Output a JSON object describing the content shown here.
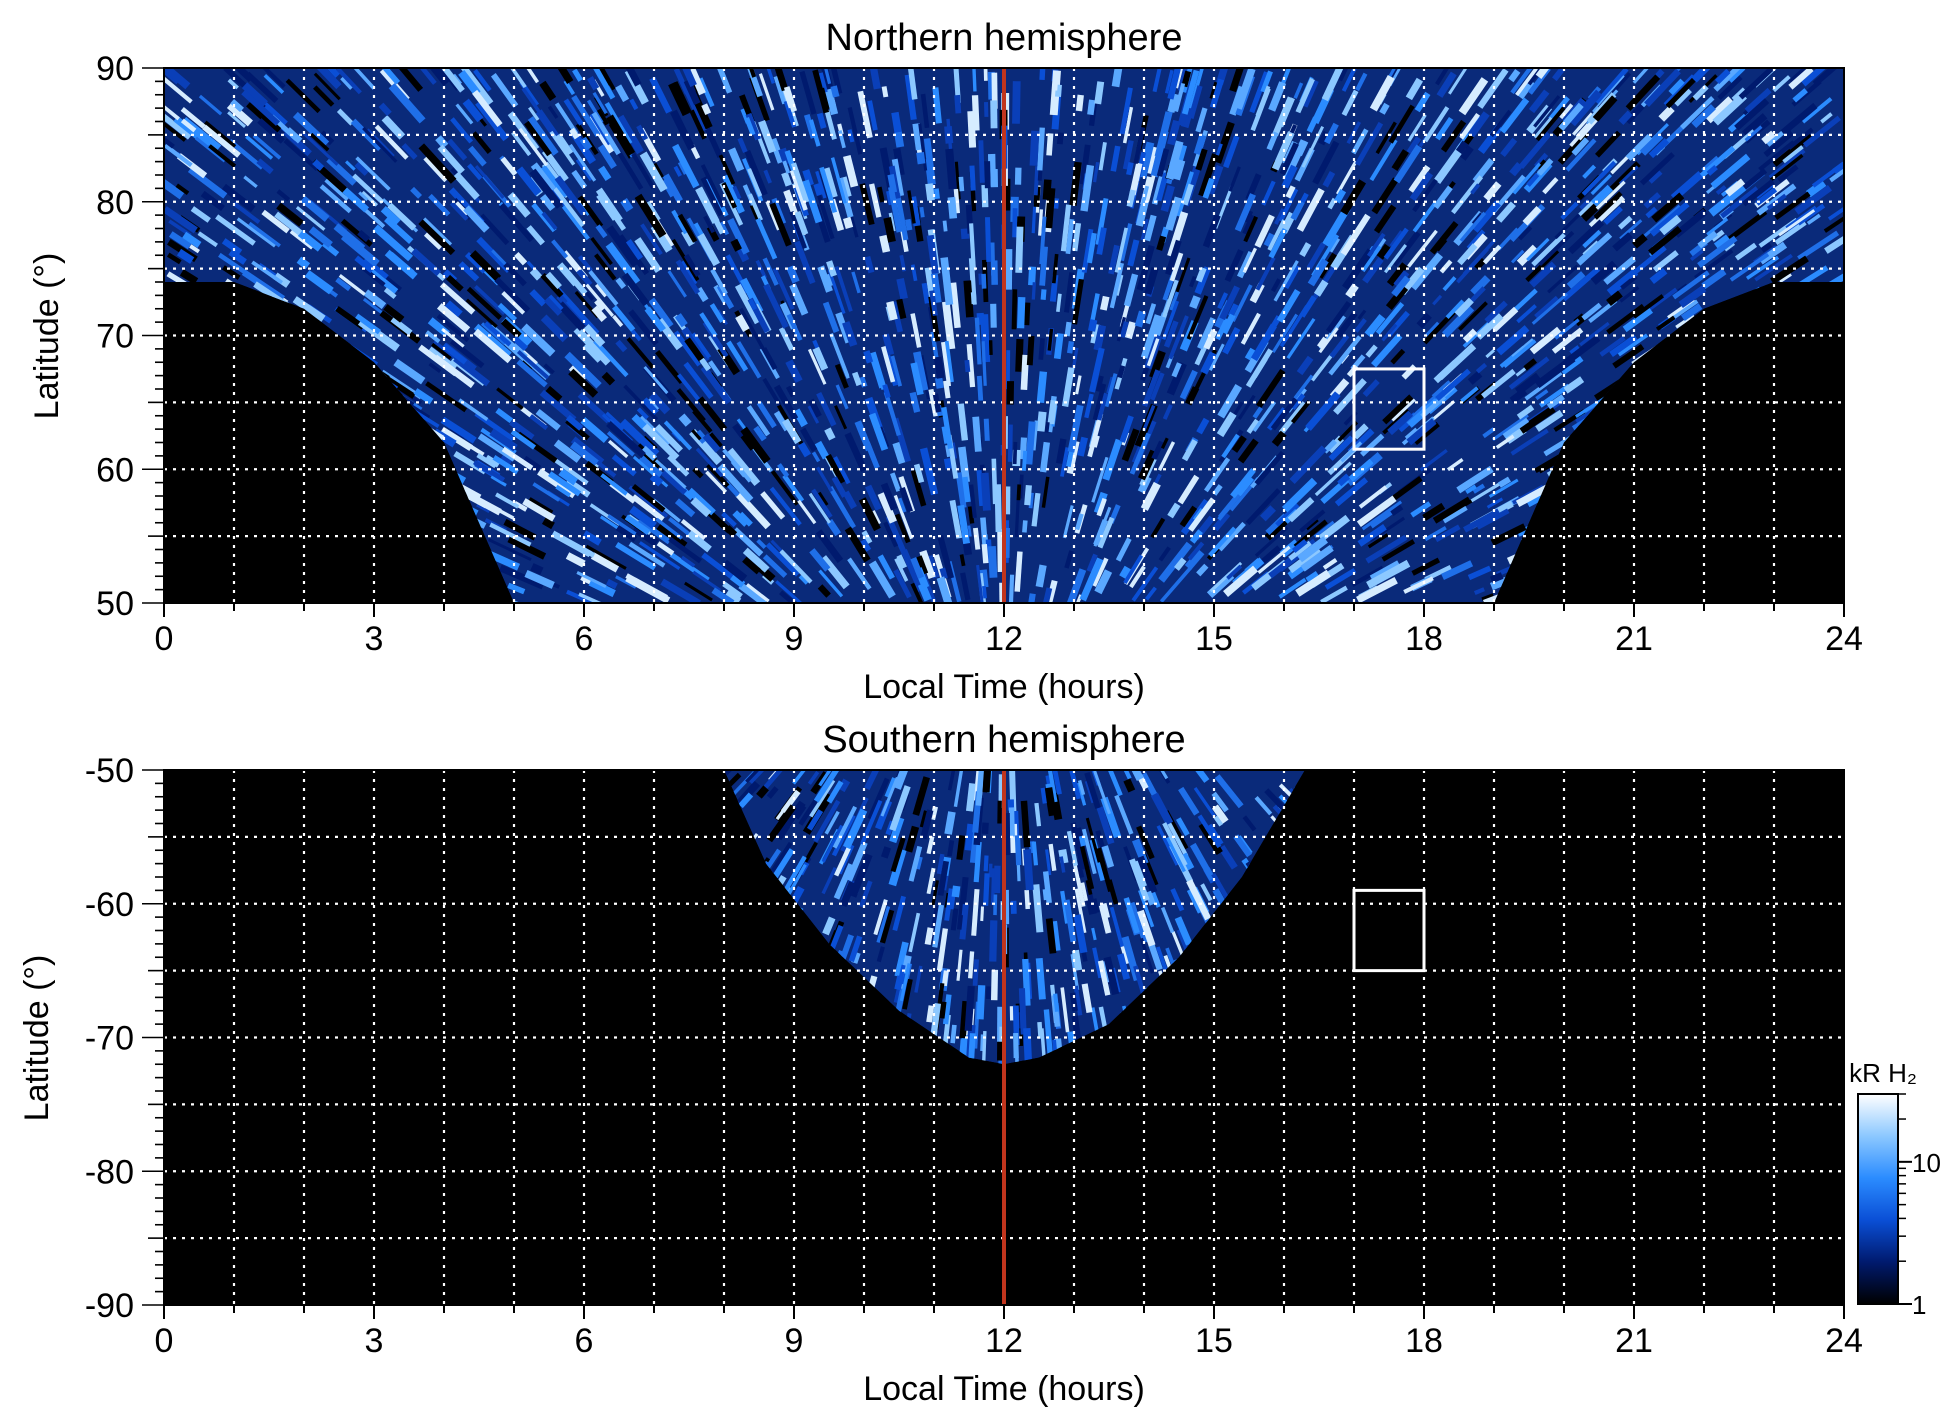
{
  "chart_data": [
    {
      "type": "heatmap",
      "title": "Northern hemisphere",
      "xlabel": "Local Time (hours)",
      "ylabel": "Latitude (°)",
      "xlim": [
        0,
        24
      ],
      "ylim": [
        50,
        90
      ],
      "x_ticks": [
        0,
        3,
        6,
        9,
        12,
        15,
        18,
        21,
        24
      ],
      "y_ticks": [
        50,
        60,
        70,
        80,
        90
      ],
      "grid": true,
      "noon_line_x": 12,
      "highlight_box": {
        "x": [
          17,
          18
        ],
        "y": [
          61.5,
          67.5
        ]
      },
      "coverage_edge": [
        [
          0,
          74
        ],
        [
          1,
          74
        ],
        [
          2,
          72
        ],
        [
          3,
          68
        ],
        [
          4,
          62
        ],
        [
          4.5,
          56
        ],
        [
          5,
          50
        ],
        [
          19,
          50
        ],
        [
          19.5,
          56
        ],
        [
          20,
          62
        ],
        [
          21,
          68
        ],
        [
          22,
          72
        ],
        [
          23,
          74
        ],
        [
          24,
          74
        ]
      ]
    },
    {
      "type": "heatmap",
      "title": "Southern hemisphere",
      "xlabel": "Local Time (hours)",
      "ylabel": "Latitude (°)",
      "xlim": [
        0,
        24
      ],
      "ylim": [
        -90,
        -50
      ],
      "x_ticks": [
        0,
        3,
        6,
        9,
        12,
        15,
        18,
        21,
        24
      ],
      "y_ticks": [
        -90,
        -80,
        -70,
        -60,
        -50
      ],
      "grid": true,
      "noon_line_x": 12,
      "highlight_box": {
        "x": [
          17,
          18
        ],
        "y": [
          -65,
          -59
        ]
      },
      "coverage_edge": [
        [
          8,
          -50
        ],
        [
          8.6,
          -57
        ],
        [
          9.5,
          -63
        ],
        [
          10.5,
          -68
        ],
        [
          11.5,
          -71.5
        ],
        [
          12,
          -72
        ],
        [
          12.5,
          -71.5
        ],
        [
          13.5,
          -69
        ],
        [
          14.5,
          -64
        ],
        [
          15.4,
          -58
        ],
        [
          16.3,
          -50
        ]
      ]
    }
  ],
  "colorbar": {
    "label": "kR H₂",
    "scale": "log",
    "range": [
      1,
      30
    ],
    "ticks": [
      1,
      10
    ],
    "colors": [
      "#000000",
      "#001a6e",
      "#0a4fd6",
      "#2b8cff",
      "#8cc8ff",
      "#ffffff"
    ]
  },
  "colors": {
    "background": "#000000",
    "noon_line": "#c1351d",
    "grid": "#ffffff",
    "box": "#ffffff"
  }
}
